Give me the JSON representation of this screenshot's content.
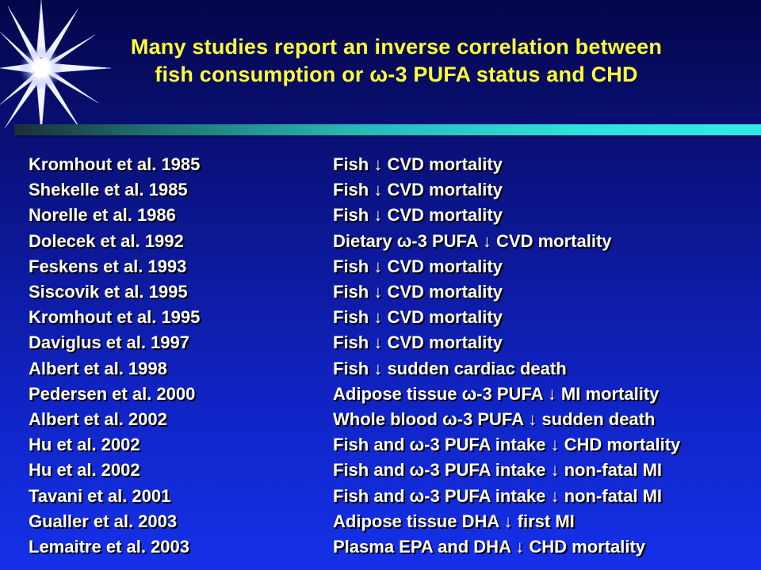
{
  "slide": {
    "title_line1": "Many studies report an inverse correlation between",
    "title_line2": "fish consumption or ω-3 PUFA status and CHD",
    "accent_color": "#ffff33",
    "divider_color": "#2ee0db",
    "rows": [
      {
        "citation": "Kromhout et al. 1985",
        "finding": "Fish ↓ CVD mortality"
      },
      {
        "citation": "Shekelle et al. 1985",
        "finding": "Fish ↓ CVD mortality"
      },
      {
        "citation": "Norelle et al. 1986",
        "finding": "Fish ↓ CVD mortality"
      },
      {
        "citation": "Dolecek et al. 1992",
        "finding": "Dietary ω-3 PUFA ↓ CVD mortality"
      },
      {
        "citation": "Feskens et al. 1993",
        "finding": "Fish ↓ CVD mortality"
      },
      {
        "citation": "Siscovik et al. 1995",
        "finding": "Fish ↓ CVD mortality"
      },
      {
        "citation": "Kromhout et al. 1995",
        "finding": "Fish ↓ CVD mortality"
      },
      {
        "citation": "Daviglus et al. 1997",
        "finding": "Fish ↓ CVD mortality"
      },
      {
        "citation": "Albert et al. 1998",
        "finding": "Fish ↓ sudden cardiac death"
      },
      {
        "citation": "Pedersen et al. 2000",
        "finding": "Adipose tissue ω-3 PUFA ↓ MI mortality"
      },
      {
        "citation": "Albert et al. 2002",
        "finding": "Whole blood ω-3 PUFA ↓ sudden death"
      },
      {
        "citation": "Hu et al. 2002",
        "finding": "Fish and ω-3 PUFA intake ↓ CHD mortality"
      },
      {
        "citation": "Hu et al. 2002",
        "finding": "Fish and ω-3 PUFA intake ↓ non-fatal MI"
      },
      {
        "citation": "Tavani et al. 2001",
        "finding": "Fish and ω-3 PUFA intake ↓ non-fatal MI"
      },
      {
        "citation": "Gualler et al. 2003",
        "finding": "Adipose tissue DHA ↓ first MI"
      },
      {
        "citation": "Lemaitre et al. 2003",
        "finding": "Plasma EPA and DHA ↓ CHD mortality"
      }
    ]
  }
}
